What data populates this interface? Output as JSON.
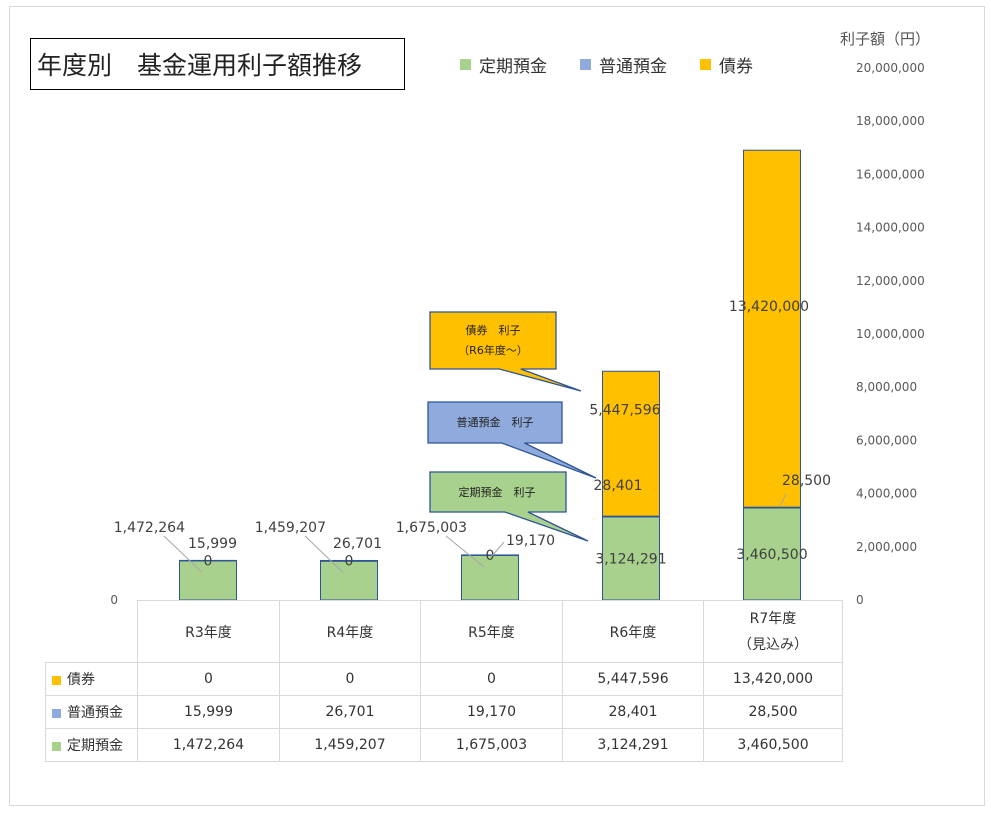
{
  "title": "年度別　基金運用利子額推移",
  "unit_label": "利子額（円）",
  "legend": [
    {
      "label": "定期預金",
      "color": "#a9d18e"
    },
    {
      "label": "普通預金",
      "color": "#8faadc"
    },
    {
      "label": "債券",
      "color": "#ffc000"
    }
  ],
  "callouts": {
    "bond": {
      "line1": "債券　利子",
      "line2": "（R6年度～）"
    },
    "ordinary": {
      "line1": "普通預金　利子"
    },
    "fixed": {
      "line1": "定期預金　利子"
    }
  },
  "chart_data": {
    "type": "bar",
    "stacked": true,
    "categories": [
      "R3年度",
      "R4年度",
      "R5年度",
      "R6年度",
      "R7年度（見込み）"
    ],
    "series": [
      {
        "name": "定期預金",
        "color": "#a9d18e",
        "values": [
          1472264,
          1459207,
          1675003,
          3124291,
          3460500
        ],
        "labels": [
          "1,472,264",
          "1,459,207",
          "1,675,003",
          "3,124,291",
          "3,460,500"
        ]
      },
      {
        "name": "普通預金",
        "color": "#8faadc",
        "values": [
          15999,
          26701,
          19170,
          28401,
          28500
        ],
        "labels": [
          "15,999",
          "26,701",
          "19,170",
          "28,401",
          "28,500"
        ]
      },
      {
        "name": "債券",
        "color": "#ffc000",
        "values": [
          0,
          0,
          0,
          5447596,
          13420000
        ],
        "labels": [
          "0",
          "0",
          "0",
          "5,447,596",
          "13,420,000"
        ]
      }
    ],
    "ylim": [
      0,
      20000000
    ],
    "yticks": [
      0,
      2000000,
      4000000,
      6000000,
      8000000,
      10000000,
      12000000,
      14000000,
      16000000,
      18000000,
      20000000
    ],
    "ytick_labels": [
      "0",
      "2,000,000",
      "4,000,000",
      "6,000,000",
      "8,000,000",
      "10,000,000",
      "12,000,000",
      "14,000,000",
      "16,000,000",
      "18,000,000",
      "20,000,000"
    ],
    "left_axis_label": "0",
    "y_axis_side": "right",
    "grid": false,
    "legend_position": "top"
  },
  "table": {
    "headers": [
      [
        "R3年度"
      ],
      [
        "R4年度"
      ],
      [
        "R5年度"
      ],
      [
        "R6年度"
      ],
      [
        "R7年度",
        "（見込み）"
      ]
    ],
    "rows": [
      {
        "label": "債券",
        "color": "#ffc000",
        "values": [
          "0",
          "0",
          "0",
          "5,447,596",
          "13,420,000"
        ]
      },
      {
        "label": "普通預金",
        "color": "#8faadc",
        "values": [
          "15,999",
          "26,701",
          "19,170",
          "28,401",
          "28,500"
        ]
      },
      {
        "label": "定期預金",
        "color": "#a9d18e",
        "values": [
          "1,472,264",
          "1,459,207",
          "1,675,003",
          "3,124,291",
          "3,460,500"
        ]
      }
    ]
  }
}
